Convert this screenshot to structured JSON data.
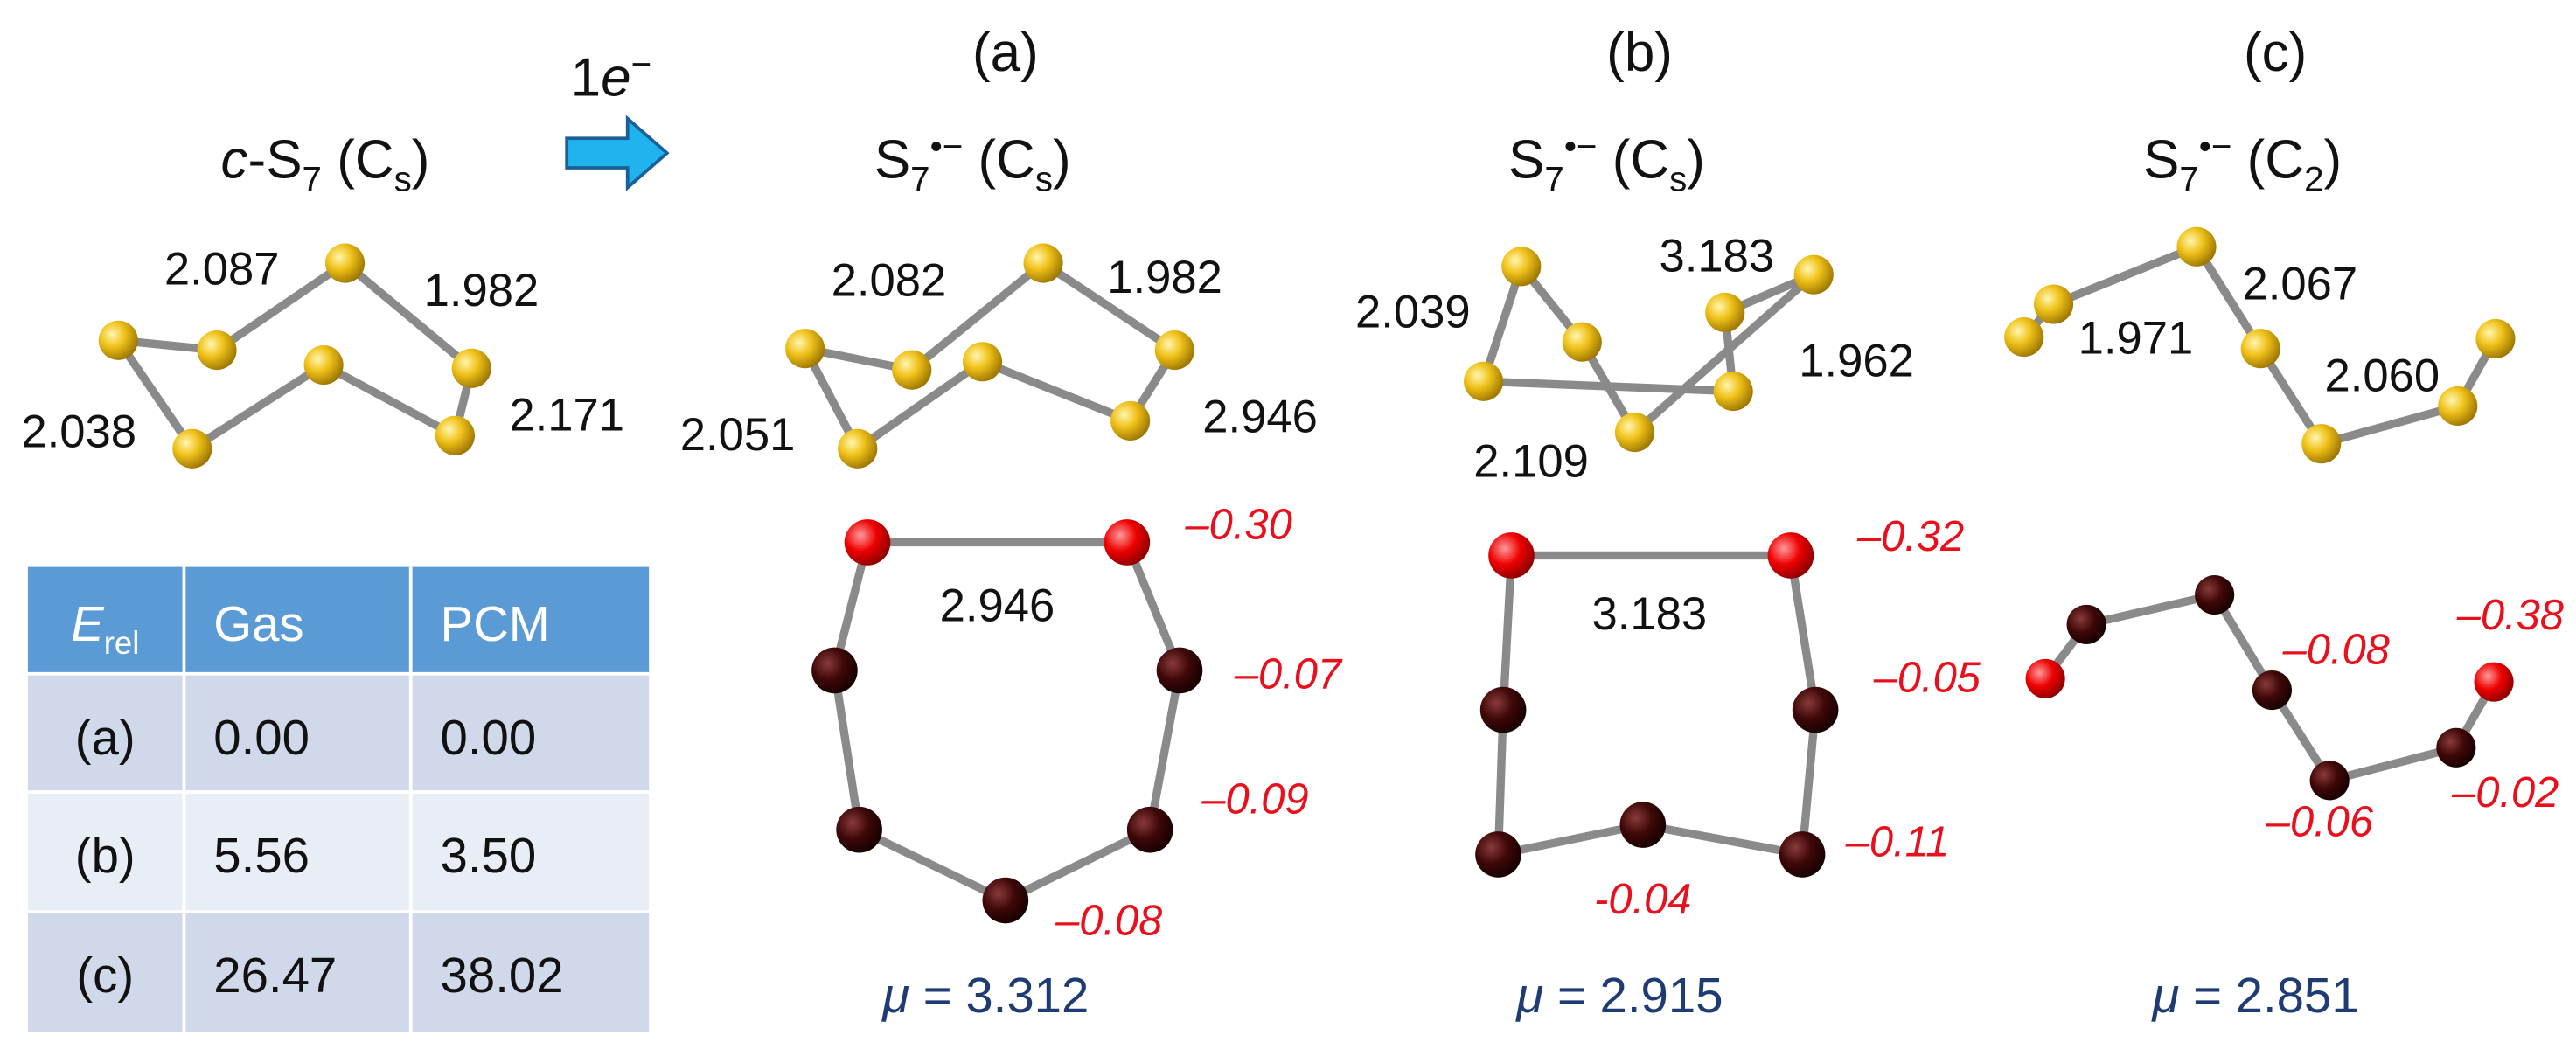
{
  "reactant": {
    "title": [
      {
        "t": "c",
        "style": "italic"
      },
      {
        "t": "-S"
      },
      {
        "t": "7",
        "style": "sub"
      },
      {
        "t": " (C"
      },
      {
        "t": "s",
        "style": "sub"
      },
      {
        "t": ")"
      }
    ],
    "bond_lengths": [
      "2.087",
      "1.982",
      "2.038",
      "2.171"
    ]
  },
  "arrow_label": [
    {
      "t": "1"
    },
    {
      "t": "e",
      "style": "italic"
    },
    {
      "t": "−",
      "style": "sup"
    }
  ],
  "panels": [
    {
      "label": "(a)",
      "title": [
        {
          "t": "S"
        },
        {
          "t": "7",
          "style": "sub"
        },
        {
          "t": "•−",
          "style": "sup"
        },
        {
          "t": " (C"
        },
        {
          "t": "s",
          "style": "sub"
        },
        {
          "t": ")"
        }
      ],
      "bond_lengths": [
        "2.082",
        "1.982",
        "2.051",
        "2.946"
      ],
      "spin_bond": "2.946",
      "charges": [
        "–0.30",
        "–0.07",
        "–0.09",
        "–0.08"
      ],
      "dipole": [
        {
          "t": "μ",
          "style": "italic"
        },
        {
          "t": " = 3.312"
        }
      ]
    },
    {
      "label": "(b)",
      "title": [
        {
          "t": "S"
        },
        {
          "t": "7",
          "style": "sub"
        },
        {
          "t": "•−",
          "style": "sup"
        },
        {
          "t": " (C"
        },
        {
          "t": "s",
          "style": "sub"
        },
        {
          "t": ")"
        }
      ],
      "bond_lengths": [
        "3.183",
        "2.039",
        "1.962",
        "2.109"
      ],
      "spin_bond": "3.183",
      "charges": [
        "–0.32",
        "–0.05",
        "–0.11",
        "-0.04"
      ],
      "dipole": [
        {
          "t": "μ",
          "style": "italic"
        },
        {
          "t": " = 2.915"
        }
      ]
    },
    {
      "label": "(c)",
      "title": [
        {
          "t": "S"
        },
        {
          "t": "7",
          "style": "sub"
        },
        {
          "t": "•−",
          "style": "sup"
        },
        {
          "t": " (C"
        },
        {
          "t": "2",
          "style": "sub"
        },
        {
          "t": ")"
        }
      ],
      "bond_lengths": [
        "1.971",
        "2.067",
        "2.060"
      ],
      "charges": [
        "–0.38",
        "–0.08",
        "–0.02",
        "–0.06"
      ],
      "dipole": [
        {
          "t": "μ",
          "style": "italic"
        },
        {
          "t": " = 2.851"
        }
      ]
    }
  ],
  "table": {
    "header": [
      [
        {
          "t": "E",
          "style": "italic"
        },
        {
          "t": "rel",
          "style": "sub"
        }
      ],
      [
        {
          "t": "Gas"
        }
      ],
      [
        {
          "t": "PCM"
        }
      ]
    ],
    "rows": [
      [
        "(a)",
        "0.00",
        "0.00"
      ],
      [
        "(b)",
        "5.56",
        "3.50"
      ],
      [
        "(c)",
        "26.47",
        "38.02"
      ]
    ]
  }
}
